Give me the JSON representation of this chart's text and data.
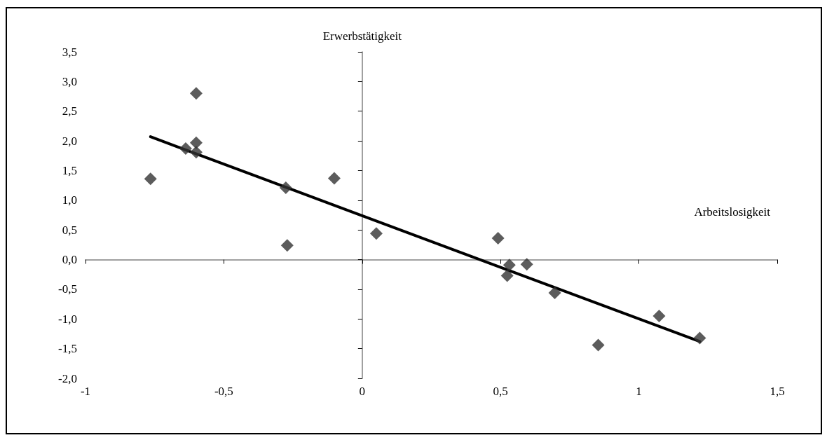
{
  "chart_data": {
    "type": "scatter",
    "xlabel": "Arbeitslosigkeit",
    "ylabel": "Erwerbstätigkeit",
    "xlim": [
      -1,
      1.5
    ],
    "xticks": [
      -1,
      {
        "value": -0.5,
        "label": "-0,5"
      },
      0,
      {
        "value": 0.5,
        "label": "0,5"
      },
      1,
      {
        "value": 1.5,
        "label": "1,5"
      }
    ],
    "ylim": [
      -2,
      3.5
    ],
    "yticks": [
      {
        "value": -2,
        "label": "-2,0"
      },
      {
        "value": -1.5,
        "label": "-1,5"
      },
      {
        "value": -1,
        "label": "-1,0"
      },
      {
        "value": -0.5,
        "label": "-0,5"
      },
      {
        "value": 0,
        "label": "0,0"
      },
      {
        "value": 0.5,
        "label": "0,5"
      },
      {
        "value": 1,
        "label": "1,0"
      },
      {
        "value": 1.5,
        "label": "1,5"
      },
      {
        "value": 2,
        "label": "2,0"
      },
      {
        "value": 2.5,
        "label": "2,5"
      },
      {
        "value": 3,
        "label": "3,0"
      },
      {
        "value": 3.5,
        "label": "3,5"
      }
    ],
    "series": [
      {
        "marker": "diamond",
        "color": "#333333",
        "x": [
          -0.765,
          -0.6,
          -0.6,
          -0.638,
          -0.6,
          -0.276,
          -0.271,
          -0.101,
          0.051,
          0.491,
          0.532,
          0.524,
          0.595,
          0.696,
          0.853,
          1.073,
          1.22
        ],
        "values": [
          1.36,
          2.8,
          1.97,
          1.87,
          1.81,
          1.21,
          0.24,
          1.37,
          0.44,
          0.36,
          -0.09,
          -0.27,
          -0.08,
          -0.56,
          -1.44,
          -0.95,
          -1.32
        ]
      },
      {
        "type": "line",
        "marker": "none",
        "color": "#000000",
        "x": [
          -0.765,
          1.22
        ],
        "values": [
          2.07,
          -1.38
        ]
      }
    ]
  }
}
